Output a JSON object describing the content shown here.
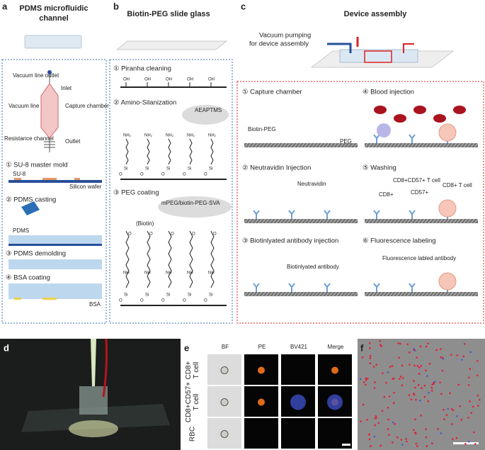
{
  "panel_a": {
    "letter": "a",
    "title": [
      "PDMS microfluidic",
      "channel"
    ],
    "chip_labels": [
      "Vacuum line outlet",
      "Inlet",
      "Vacuum line",
      "Capture chamber",
      "Resistance channel",
      "Outlet"
    ],
    "steps": [
      "① SU-8 master mold",
      "② PDMS casting",
      "③ PDMS demolding",
      "④ BSA coating"
    ],
    "materials": [
      "SU-8",
      "Silicon wafer",
      "PDMS",
      "BSA"
    ]
  },
  "panel_b": {
    "letter": "b",
    "title": "Biotin-PEG slide glass",
    "steps": [
      "① Piranha cleaning",
      "② Amino-Silanization",
      "③ PEG coating"
    ],
    "chem": {
      "hydroxyl": "OH",
      "amine": "NH₂",
      "silicon": "Si",
      "oxygen": "O",
      "nh": "NH",
      "biotin": "(Biotin)"
    },
    "reagents": [
      "AEAPTMS",
      "mPEG/biotin-PEG-SVA"
    ]
  },
  "panel_c": {
    "letter": "c",
    "title": "Device assembly",
    "vacuum_note": [
      "Vacuum pumping",
      "for device assembly"
    ],
    "steps": [
      "① Capture chamber",
      "② Neutravidin Injection",
      "③ Biotinlyated antibody injection",
      "④ Blood injection",
      "⑤ Washing",
      "⑥ Fluorescence labeling"
    ],
    "labels": [
      "Biotin-PEG",
      "PEG",
      "Neutravidin",
      "Biotinlyated antibody",
      "CD8+CD57+ T cell",
      "CD8+ T cell",
      "CD8+",
      "CD57+",
      "Fluorescence labled antibody"
    ]
  },
  "panel_d": {
    "letter": "d"
  },
  "panel_e": {
    "letter": "e",
    "columns": [
      "BF",
      "PE",
      "BV421",
      "Merge"
    ],
    "rows": [
      [
        "CD8+",
        "T cell"
      ],
      [
        "CD8+CD57+",
        "T cell"
      ],
      [
        "RBC"
      ]
    ]
  },
  "panel_f": {
    "letter": "f"
  }
}
